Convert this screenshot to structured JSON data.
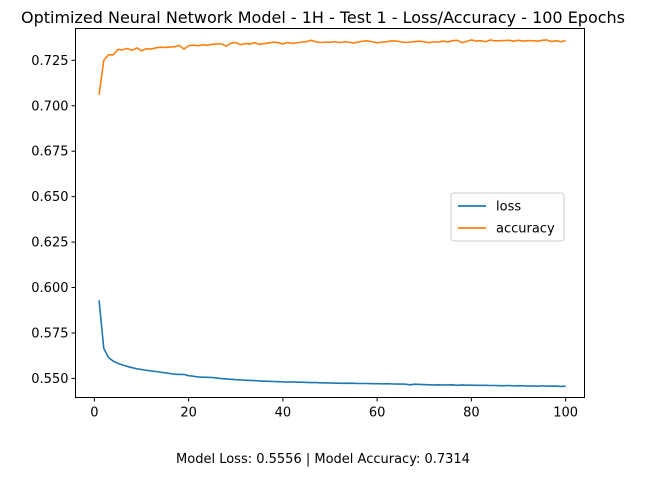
{
  "chart_data": {
    "type": "line",
    "title": "Optimized Neural Network Model - 1H - Test 1 - Loss/Accuracy - 100 Epochs",
    "xlabel": "",
    "ylabel": "",
    "xlim": [
      -4,
      104
    ],
    "ylim": [
      0.5395,
      0.7425
    ],
    "x_ticks": [
      0,
      20,
      40,
      60,
      80,
      100
    ],
    "y_ticks": [
      0.55,
      0.575,
      0.6,
      0.625,
      0.65,
      0.675,
      0.7,
      0.725
    ],
    "grid": false,
    "legend_position": "center-right",
    "series": [
      {
        "name": "loss",
        "color": "#1f77b4",
        "x": [
          1,
          2,
          3,
          4,
          5,
          6,
          7,
          8,
          9,
          10,
          11,
          12,
          13,
          14,
          15,
          16,
          17,
          18,
          19,
          20,
          21,
          22,
          23,
          24,
          25,
          26,
          27,
          28,
          29,
          30,
          31,
          32,
          33,
          34,
          35,
          36,
          37,
          38,
          39,
          40,
          41,
          42,
          43,
          44,
          45,
          46,
          47,
          48,
          49,
          50,
          51,
          52,
          53,
          54,
          55,
          56,
          57,
          58,
          59,
          60,
          61,
          62,
          63,
          64,
          65,
          66,
          67,
          68,
          69,
          70,
          71,
          72,
          73,
          74,
          75,
          76,
          77,
          78,
          79,
          80,
          81,
          82,
          83,
          84,
          85,
          86,
          87,
          88,
          89,
          90,
          91,
          92,
          93,
          94,
          95,
          96,
          97,
          98,
          99,
          100
        ],
        "values": [
          0.593,
          0.5665,
          0.5615,
          0.5595,
          0.5583,
          0.5574,
          0.5566,
          0.5559,
          0.5553,
          0.5549,
          0.5545,
          0.5541,
          0.5538,
          0.5534,
          0.5531,
          0.5527,
          0.5523,
          0.5522,
          0.5522,
          0.5515,
          0.5512,
          0.5508,
          0.5507,
          0.5506,
          0.5505,
          0.5502,
          0.5499,
          0.5497,
          0.5495,
          0.5493,
          0.5492,
          0.549,
          0.5489,
          0.5488,
          0.5486,
          0.5485,
          0.5484,
          0.5483,
          0.5482,
          0.5481,
          0.548,
          0.5481,
          0.5479,
          0.5479,
          0.5478,
          0.5477,
          0.5477,
          0.5476,
          0.5475,
          0.5475,
          0.5474,
          0.5474,
          0.5473,
          0.5474,
          0.5473,
          0.5472,
          0.5472,
          0.5472,
          0.5471,
          0.5471,
          0.547,
          0.5471,
          0.547,
          0.5469,
          0.5469,
          0.5468,
          0.5465,
          0.5468,
          0.5467,
          0.5466,
          0.5465,
          0.5464,
          0.5465,
          0.5464,
          0.5464,
          0.5465,
          0.5462,
          0.5464,
          0.5463,
          0.5463,
          0.5462,
          0.5462,
          0.5462,
          0.5461,
          0.5461,
          0.546,
          0.546,
          0.5461,
          0.5459,
          0.546,
          0.5459,
          0.5458,
          0.5459,
          0.5457,
          0.5459,
          0.5458,
          0.5457,
          0.5458,
          0.5456,
          0.5457
        ]
      },
      {
        "name": "accuracy",
        "color": "#ff7f0e",
        "x": [
          1,
          2,
          3,
          4,
          5,
          6,
          7,
          8,
          9,
          10,
          11,
          12,
          13,
          14,
          15,
          16,
          17,
          18,
          19,
          20,
          21,
          22,
          23,
          24,
          25,
          26,
          27,
          28,
          29,
          30,
          31,
          32,
          33,
          34,
          35,
          36,
          37,
          38,
          39,
          40,
          41,
          42,
          43,
          44,
          45,
          46,
          47,
          48,
          49,
          50,
          51,
          52,
          53,
          54,
          55,
          56,
          57,
          58,
          59,
          60,
          61,
          62,
          63,
          64,
          65,
          66,
          67,
          68,
          69,
          70,
          71,
          72,
          73,
          74,
          75,
          76,
          77,
          78,
          79,
          80,
          81,
          82,
          83,
          84,
          85,
          86,
          87,
          88,
          89,
          90,
          91,
          92,
          93,
          94,
          95,
          96,
          97,
          98,
          99,
          100
        ],
        "values": [
          0.706,
          0.725,
          0.728,
          0.728,
          0.731,
          0.7308,
          0.7315,
          0.7305,
          0.7318,
          0.7302,
          0.7314,
          0.7312,
          0.7318,
          0.7322,
          0.7321,
          0.7323,
          0.7324,
          0.7332,
          0.7312,
          0.733,
          0.7334,
          0.733,
          0.7336,
          0.7332,
          0.7338,
          0.734,
          0.734,
          0.7328,
          0.7345,
          0.7348,
          0.7336,
          0.7342,
          0.734,
          0.7347,
          0.7338,
          0.7342,
          0.7345,
          0.735,
          0.7347,
          0.734,
          0.7348,
          0.7343,
          0.7346,
          0.735,
          0.7353,
          0.736,
          0.7352,
          0.7348,
          0.735,
          0.7349,
          0.7352,
          0.7348,
          0.7352,
          0.735,
          0.7345,
          0.735,
          0.7355,
          0.7357,
          0.7352,
          0.7346,
          0.735,
          0.7352,
          0.7357,
          0.7356,
          0.7352,
          0.7348,
          0.735,
          0.7353,
          0.7355,
          0.7352,
          0.7347,
          0.7352,
          0.735,
          0.7356,
          0.7351,
          0.7358,
          0.736,
          0.7347,
          0.7354,
          0.7362,
          0.7356,
          0.7358,
          0.7352,
          0.7362,
          0.7357,
          0.7357,
          0.7359,
          0.736,
          0.7355,
          0.736,
          0.7356,
          0.7358,
          0.7358,
          0.7355,
          0.736,
          0.7362,
          0.7353,
          0.7358,
          0.7352,
          0.7359
        ]
      }
    ],
    "footer_text": "Model Loss: 0.5556 | Model Accuracy: 0.7314"
  }
}
